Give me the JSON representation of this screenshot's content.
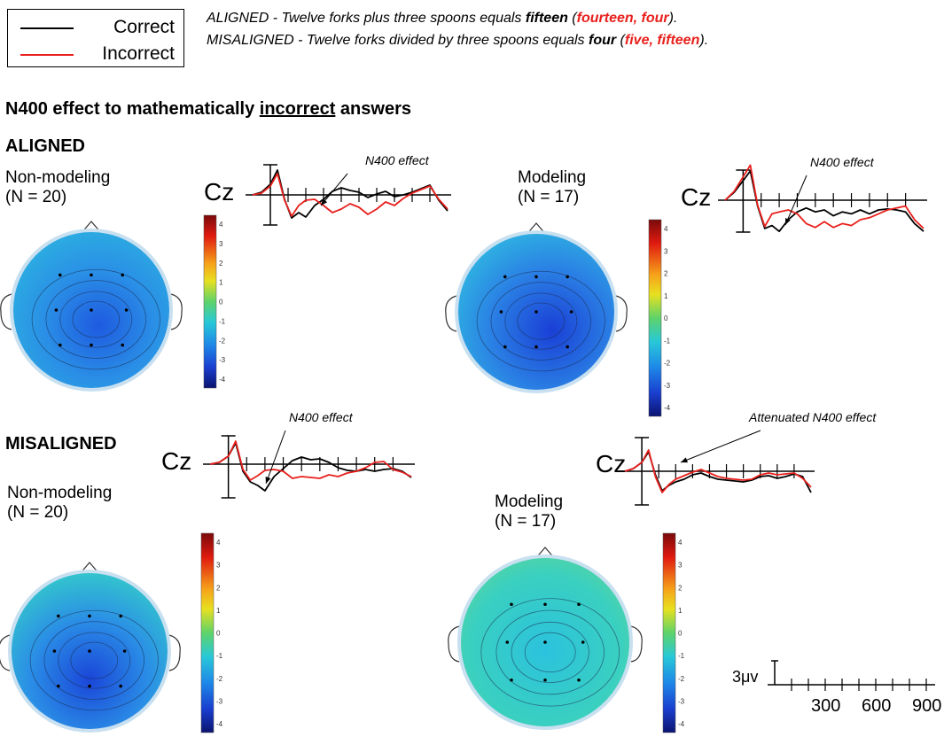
{
  "legend": {
    "correct": {
      "label": "Correct",
      "color": "#000000"
    },
    "incorrect": {
      "label": "Incorrect",
      "color": "#e8201c"
    }
  },
  "examples": [
    {
      "prefix": "ALIGNED - Twelve forks plus three spoons equals ",
      "answer": "fifteen",
      "open": " (",
      "wrong": "fourteen, four",
      "close": ")."
    },
    {
      "prefix": "MISALIGNED - Twelve forks divided by three spoons equals ",
      "answer": "four",
      "open": " (",
      "wrong": "five, fifteen",
      "close": ")."
    }
  ],
  "title": {
    "pre": "N400 effect to mathematically ",
    "underlined": "incorrect",
    "post": " answers"
  },
  "sections": {
    "aligned": "ALIGNED",
    "misaligned": "MISALIGNED"
  },
  "panels": {
    "aligned_nonmodeling": {
      "group": "Non-modeling\n(N = 20)",
      "annotation": "N400 effect",
      "electrode": "Cz"
    },
    "aligned_modeling": {
      "group": "Modeling\n(N = 17)",
      "annotation": "N400 effect",
      "electrode": "Cz"
    },
    "misaligned_nonmodeling": {
      "group": "Non-modeling\n(N = 20)",
      "annotation": "N400 effect",
      "electrode": "Cz"
    },
    "misaligned_modeling": {
      "group": "Modeling\n(N = 17)",
      "annotation": "Attenuated N400 effect",
      "electrode": "Cz"
    }
  },
  "colorbar_ticks": [
    "4",
    "3",
    "2",
    "1",
    "0",
    "-1",
    "-2",
    "-3",
    "-4"
  ],
  "scale": {
    "amplitude": "3μv",
    "ticks": [
      "300",
      "600",
      "900"
    ]
  },
  "chart_data": {
    "type": "line",
    "x_unit": "ms",
    "xlim": [
      -100,
      1000
    ],
    "ylim": [
      -4,
      4
    ],
    "panels": [
      {
        "id": "aligned_nonmodeling",
        "x": [
          -100,
          -50,
          0,
          40,
          80,
          120,
          160,
          200,
          250,
          300,
          350,
          400,
          450,
          500,
          550,
          600,
          650,
          700,
          750,
          800,
          850,
          900,
          950,
          1000
        ],
        "series": [
          {
            "name": "Correct",
            "values": [
              0,
              0.3,
              1.2,
              2.8,
              -0.5,
              -2.6,
              -2.0,
              -2.5,
              -1.2,
              -0.5,
              0.4,
              0.8,
              0.5,
              0.3,
              -0.3,
              0.1,
              0.4,
              -0.2,
              0.0,
              0.3,
              0.7,
              1.1,
              -0.6,
              -1.8
            ]
          },
          {
            "name": "Incorrect",
            "values": [
              0,
              0.2,
              1.0,
              2.4,
              -0.6,
              -2.4,
              -1.2,
              -0.6,
              -0.5,
              -1.2,
              -2.0,
              -1.6,
              -1.0,
              -1.4,
              -2.2,
              -1.6,
              -0.8,
              -1.2,
              -0.4,
              0.2,
              0.6,
              1.0,
              -0.5,
              -1.6
            ]
          }
        ]
      },
      {
        "id": "aligned_modeling",
        "x": [
          -100,
          -50,
          0,
          40,
          80,
          120,
          160,
          200,
          250,
          300,
          350,
          400,
          450,
          500,
          550,
          600,
          650,
          700,
          750,
          800,
          850,
          900,
          950,
          1000
        ],
        "series": [
          {
            "name": "Correct",
            "values": [
              0,
              0.8,
              2.0,
              3.0,
              -0.6,
              -2.9,
              -2.6,
              -3.2,
              -2.0,
              -1.2,
              -0.8,
              -1.2,
              -1.0,
              -1.6,
              -1.2,
              -1.4,
              -1.0,
              -1.4,
              -1.0,
              -0.9,
              -1.0,
              -1.2,
              -2.4,
              -3.2
            ]
          },
          {
            "name": "Incorrect",
            "values": [
              0,
              0.9,
              2.4,
              3.6,
              -0.5,
              -2.7,
              -1.4,
              -1.2,
              -1.0,
              -1.4,
              -2.4,
              -2.8,
              -2.2,
              -2.8,
              -2.4,
              -2.6,
              -2.0,
              -1.8,
              -1.4,
              -1.0,
              -0.8,
              -0.6,
              -2.0,
              -2.9
            ]
          }
        ]
      },
      {
        "id": "misaligned_nonmodeling",
        "x": [
          -100,
          -50,
          0,
          40,
          80,
          120,
          160,
          200,
          250,
          300,
          350,
          400,
          450,
          500,
          550,
          600,
          650,
          700,
          750,
          800,
          850,
          900,
          950,
          1000
        ],
        "series": [
          {
            "name": "Correct",
            "values": [
              0,
              0.2,
              0.9,
              2.4,
              -0.8,
              -2.0,
              -2.4,
              -3.0,
              -1.4,
              -0.5,
              0.4,
              0.8,
              0.5,
              0.6,
              0.2,
              -0.4,
              -0.7,
              -0.8,
              -0.6,
              -0.8,
              -0.6,
              -0.5,
              -0.8,
              -1.5
            ]
          },
          {
            "name": "Incorrect",
            "values": [
              0,
              0.2,
              0.9,
              2.6,
              -0.6,
              -1.8,
              -1.3,
              -0.7,
              -0.6,
              -0.8,
              -1.6,
              -1.4,
              -1.5,
              -1.6,
              -1.2,
              -1.4,
              -1.0,
              -0.8,
              -0.4,
              0.2,
              0.3,
              -0.6,
              -0.9,
              -1.4
            ]
          }
        ]
      },
      {
        "id": "misaligned_modeling",
        "x": [
          -100,
          -50,
          0,
          40,
          80,
          120,
          160,
          200,
          250,
          300,
          350,
          400,
          450,
          500,
          550,
          600,
          650,
          700,
          750,
          800,
          850,
          900,
          950,
          1000
        ],
        "series": [
          {
            "name": "Correct",
            "values": [
              0,
              0.3,
              1.0,
              2.2,
              -0.4,
              -2.2,
              -1.6,
              -1.2,
              -0.9,
              -0.4,
              -0.2,
              -0.6,
              -0.9,
              -1.0,
              -1.1,
              -1.2,
              -1.0,
              -0.6,
              -0.5,
              -0.8,
              -0.6,
              -0.3,
              -0.6,
              -2.4
            ]
          },
          {
            "name": "Incorrect",
            "values": [
              0,
              0.3,
              1.0,
              2.4,
              -0.6,
              -2.4,
              -1.5,
              -0.9,
              -0.5,
              -0.1,
              0.2,
              -0.2,
              -0.6,
              -0.8,
              -0.9,
              -1.0,
              -0.9,
              -0.4,
              -0.2,
              -0.4,
              -0.3,
              -0.2,
              -0.8,
              -1.8
            ]
          }
        ]
      }
    ]
  }
}
